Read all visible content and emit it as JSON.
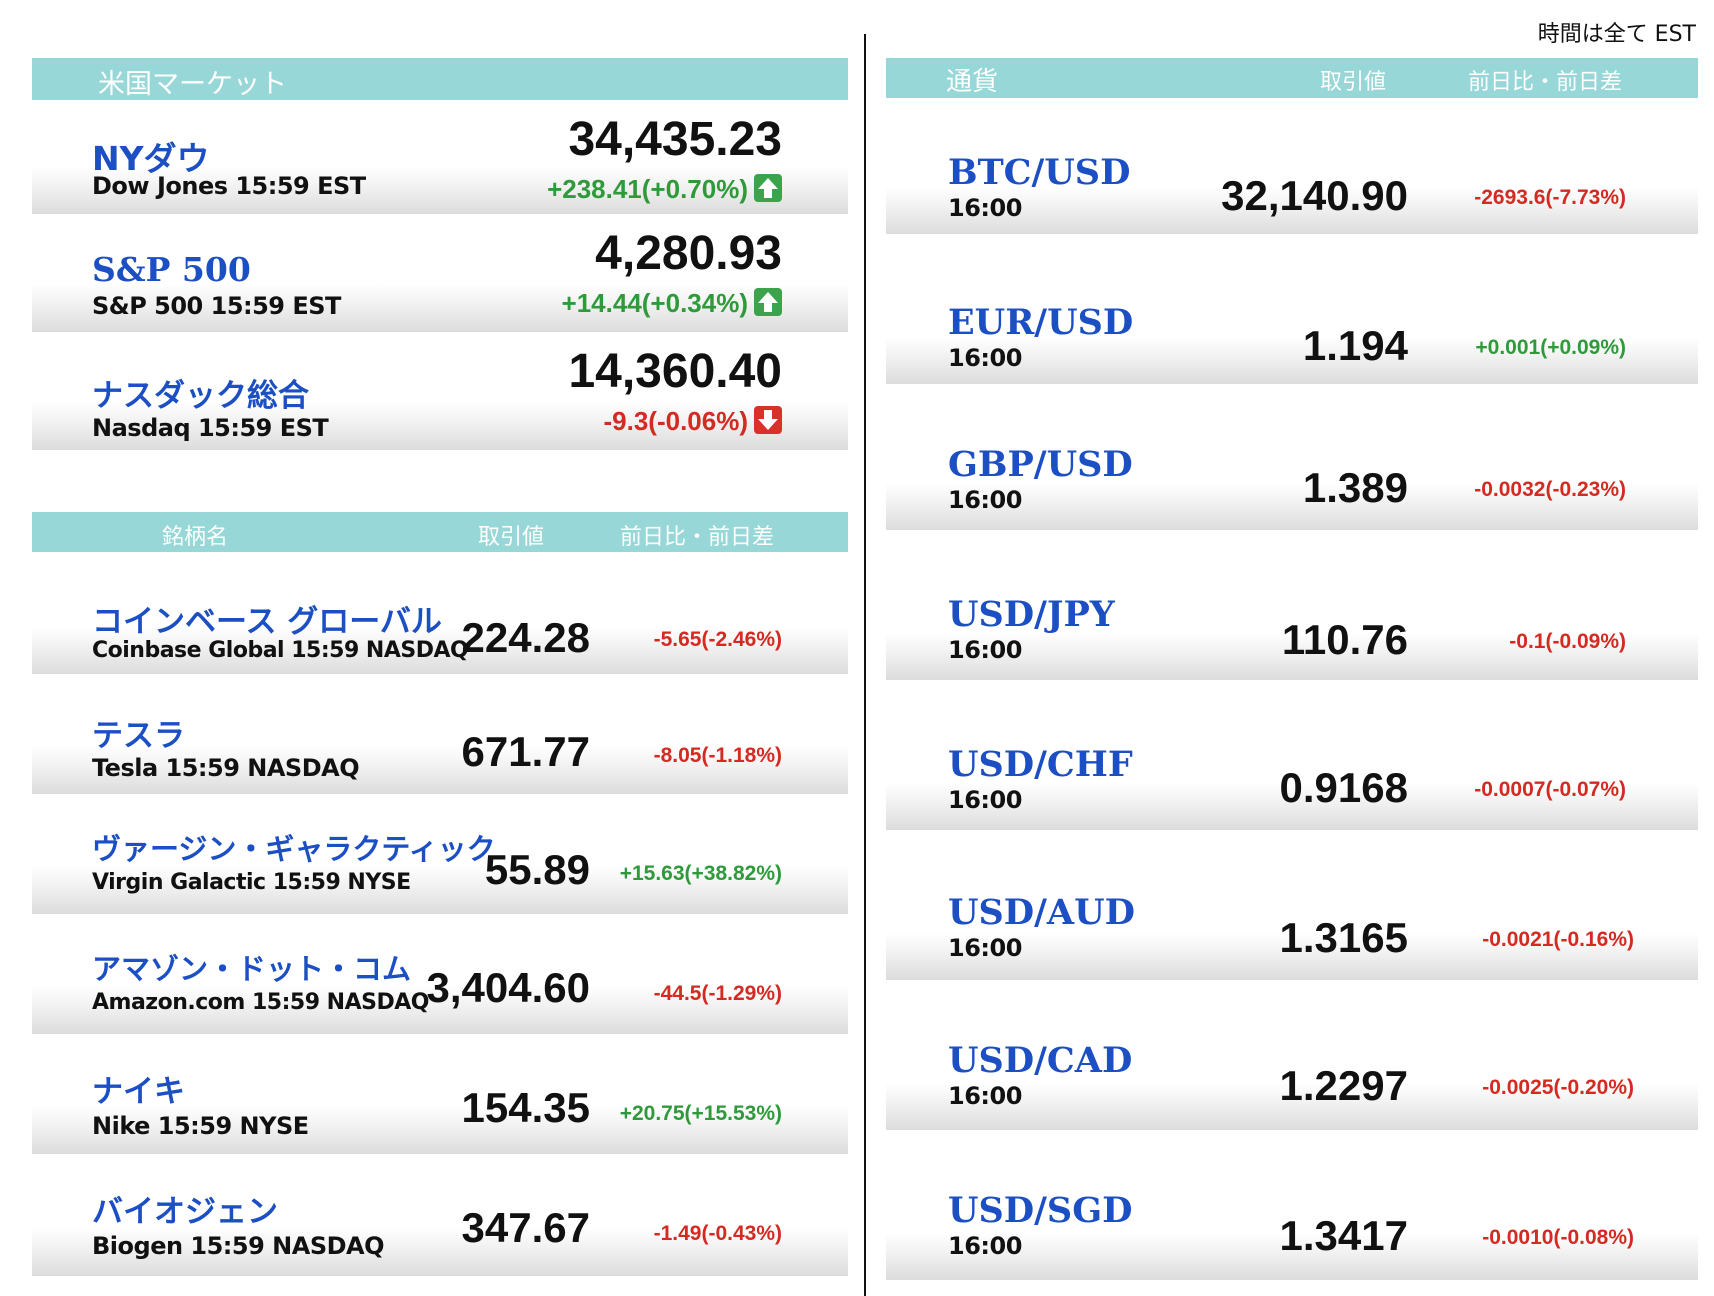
{
  "header_note": "時間は全て EST",
  "indices": {
    "title": "米国マーケット",
    "items": [
      {
        "name": "NYダウ",
        "sub": "Dow Jones 15:59 EST",
        "value": "34,435.23",
        "change": "+238.41(+0.70%)",
        "direction": "up"
      },
      {
        "name": "S&P 500",
        "sub": "S&P 500 15:59 EST",
        "value": "4,280.93",
        "change": "+14.44(+0.34%)",
        "direction": "up"
      },
      {
        "name": "ナスダック総合",
        "sub": "Nasdaq 15:59 EST",
        "value": "14,360.40",
        "change": "-9.3(-0.06%)",
        "direction": "down"
      }
    ]
  },
  "stocks": {
    "headers": {
      "name": "銘柄名",
      "price": "取引値",
      "change": "前日比・前日差"
    },
    "items": [
      {
        "name": "コインベース グローバル",
        "sub": "Coinbase Global 15:59  NASDAQ",
        "value": "224.28",
        "change": "-5.65(-2.46%)",
        "direction": "down"
      },
      {
        "name": "テスラ",
        "sub": "Tesla 15:59  NASDAQ",
        "value": "671.77",
        "change": "-8.05(-1.18%)",
        "direction": "down"
      },
      {
        "name": "ヴァージン・ギャラクティック",
        "sub": "Virgin Galactic 15:59  NYSE",
        "value": "55.89",
        "change": "+15.63(+38.82%)",
        "direction": "up"
      },
      {
        "name": "アマゾン・ドット・コム",
        "sub": "Amazon.com 15:59  NASDAQ",
        "value": "3,404.60",
        "change": "-44.5(-1.29%)",
        "direction": "down"
      },
      {
        "name": "ナイキ",
        "sub": "Nike 15:59  NYSE",
        "value": "154.35",
        "change": "+20.75(+15.53%)",
        "direction": "up"
      },
      {
        "name": "バイオジェン",
        "sub": "Biogen 15:59  NASDAQ",
        "value": "347.67",
        "change": "-1.49(-0.43%)",
        "direction": "down"
      }
    ]
  },
  "currencies": {
    "headers": {
      "name": "通貨",
      "price": "取引値",
      "change": "前日比・前日差"
    },
    "items": [
      {
        "pair": "BTC/USD",
        "time": "16:00",
        "value": "32,140.90",
        "change": "-2693.6(-7.73%)",
        "direction": "down"
      },
      {
        "pair": "EUR/USD",
        "time": "16:00",
        "value": "1.194",
        "change": "+0.001(+0.09%)",
        "direction": "up"
      },
      {
        "pair": "GBP/USD",
        "time": "16:00",
        "value": "1.389",
        "change": "-0.0032(-0.23%)",
        "direction": "down"
      },
      {
        "pair": "USD/JPY",
        "time": "16:00",
        "value": "110.76",
        "change": "-0.1(-0.09%)",
        "direction": "down"
      },
      {
        "pair": "USD/CHF",
        "time": "16:00",
        "value": "0.9168",
        "change": "-0.0007(-0.07%)",
        "direction": "down"
      },
      {
        "pair": "USD/AUD",
        "time": "16:00",
        "value": "1.3165",
        "change": "-0.0021(-0.16%)",
        "direction": "down"
      },
      {
        "pair": "USD/CAD",
        "time": "16:00",
        "value": "1.2297",
        "change": "-0.0025(-0.20%)",
        "direction": "down"
      },
      {
        "pair": "USD/SGD",
        "time": "16:00",
        "value": "1.3417",
        "change": "-0.0010(-0.08%)",
        "direction": "down"
      }
    ]
  }
}
